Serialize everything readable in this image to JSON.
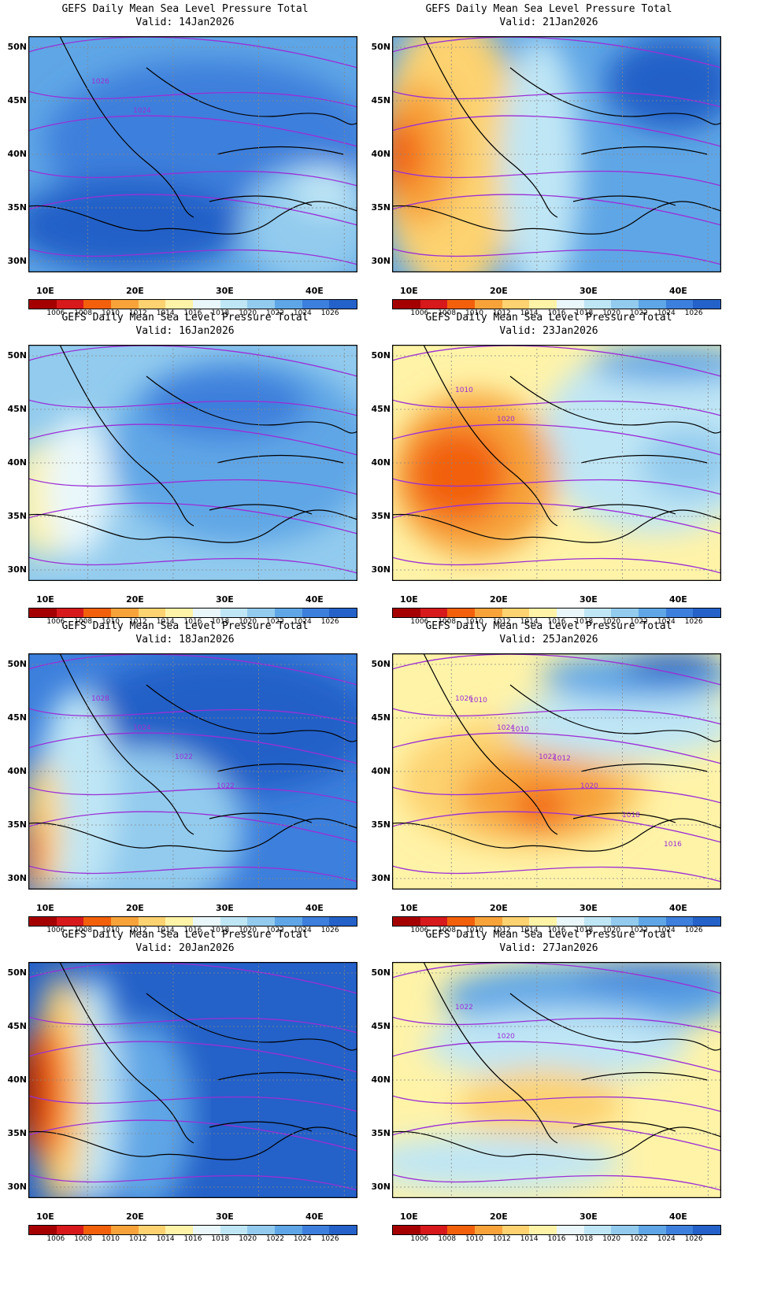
{
  "title_line1": "GEFS Daily Mean Sea Level Pressure Total",
  "lat_labels": [
    "50N",
    "45N",
    "40N",
    "35N",
    "30N"
  ],
  "lon_labels": [
    "10E",
    "20E",
    "30E",
    "40E"
  ],
  "colorbar": {
    "labels": [
      "1006",
      "1008",
      "1010",
      "1012",
      "1014",
      "1016",
      "1018",
      "1020",
      "1022",
      "1024",
      "1026"
    ],
    "colors": [
      "#a50000",
      "#d7191c",
      "#f2600b",
      "#f7a33a",
      "#fdd270",
      "#fff3a8",
      "#e9f7fb",
      "#bfe6f5",
      "#92cbee",
      "#5fa6e6",
      "#3c7fdc",
      "#2461c8"
    ]
  },
  "panels": [
    {
      "id": "p1",
      "valid": "Valid: 14Jan2026",
      "contour_labels": [
        "1026",
        "1024"
      ],
      "bg": "#5fa6e6",
      "blobs": [
        [
          "#3c7fdc",
          0.55,
          0.45,
          0.5,
          0.35
        ],
        [
          "#2461c8",
          0.3,
          0.8,
          0.35,
          0.2
        ],
        [
          "#92cbee",
          0.85,
          0.8,
          0.2,
          0.25
        ],
        [
          "#bfe6f5",
          0.9,
          0.65,
          0.1,
          0.1
        ]
      ]
    },
    {
      "id": "p2",
      "valid": "Valid: 21Jan2026",
      "contour_labels": [],
      "bg": "#5fa6e6",
      "blobs": [
        [
          "#fdd270",
          0.18,
          0.5,
          0.22,
          0.6
        ],
        [
          "#f7a33a",
          0.08,
          0.5,
          0.12,
          0.3
        ],
        [
          "#f2600b",
          0.03,
          0.5,
          0.06,
          0.15
        ],
        [
          "#bfe6f5",
          0.45,
          0.55,
          0.12,
          0.55
        ],
        [
          "#2461c8",
          0.85,
          0.2,
          0.2,
          0.2
        ]
      ]
    },
    {
      "id": "p3",
      "valid": "Valid: 16Jan2026",
      "contour_labels": [],
      "bg": "#92cbee",
      "blobs": [
        [
          "#5fa6e6",
          0.65,
          0.45,
          0.4,
          0.4
        ],
        [
          "#3c7fdc",
          0.6,
          0.25,
          0.25,
          0.15
        ],
        [
          "#fff3a8",
          0.05,
          0.65,
          0.1,
          0.25
        ],
        [
          "#e9f7fb",
          0.15,
          0.6,
          0.1,
          0.3
        ]
      ]
    },
    {
      "id": "p4",
      "valid": "Valid: 23Jan2026",
      "contour_labels": [
        "1010",
        "1020"
      ],
      "bg": "#fff3a8",
      "blobs": [
        [
          "#bfe6f5",
          0.8,
          0.4,
          0.35,
          0.4
        ],
        [
          "#92cbee",
          0.9,
          0.5,
          0.15,
          0.15
        ],
        [
          "#f7a33a",
          0.25,
          0.55,
          0.25,
          0.35
        ],
        [
          "#f2600b",
          0.2,
          0.55,
          0.15,
          0.2
        ],
        [
          "#5fa6e6",
          0.85,
          0.08,
          0.25,
          0.08
        ]
      ]
    },
    {
      "id": "p5",
      "valid": "Valid: 18Jan2026",
      "contour_labels": [
        "1028",
        "1024",
        "1022",
        "1022"
      ],
      "bg": "#3c7fdc",
      "blobs": [
        [
          "#2461c8",
          0.6,
          0.3,
          0.45,
          0.3
        ],
        [
          "#92cbee",
          0.35,
          0.75,
          0.3,
          0.35
        ],
        [
          "#bfe6f5",
          0.15,
          0.6,
          0.12,
          0.45
        ],
        [
          "#fdd270",
          0.04,
          0.75,
          0.06,
          0.3
        ],
        [
          "#f2600b",
          0.01,
          0.85,
          0.03,
          0.15
        ]
      ]
    },
    {
      "id": "p6",
      "valid": "Valid: 25Jan2026",
      "contour_labels": [
        "1026",
        "1024",
        "1022",
        "1020",
        "1018",
        "1016",
        "1010",
        "1010",
        "1012"
      ],
      "bg": "#fff3a8",
      "blobs": [
        [
          "#fdd270",
          0.4,
          0.55,
          0.38,
          0.28
        ],
        [
          "#f7a33a",
          0.45,
          0.6,
          0.25,
          0.18
        ],
        [
          "#f2600b",
          0.45,
          0.65,
          0.08,
          0.08
        ],
        [
          "#bfe6f5",
          0.7,
          0.3,
          0.35,
          0.15
        ],
        [
          "#5fa6e6",
          0.75,
          0.1,
          0.3,
          0.1
        ],
        [
          "#2461c8",
          0.85,
          0.05,
          0.15,
          0.06
        ]
      ]
    },
    {
      "id": "p7",
      "valid": "Valid: 20Jan2026",
      "contour_labels": [],
      "bg": "#2461c8",
      "blobs": [
        [
          "#5fa6e6",
          0.35,
          0.65,
          0.15,
          0.4
        ],
        [
          "#bfe6f5",
          0.2,
          0.55,
          0.08,
          0.5
        ],
        [
          "#fdd270",
          0.1,
          0.55,
          0.08,
          0.5
        ],
        [
          "#f2600b",
          0.05,
          0.55,
          0.07,
          0.3
        ],
        [
          "#a50000",
          0.0,
          0.55,
          0.04,
          0.2
        ]
      ]
    },
    {
      "id": "p8",
      "valid": "Valid: 27Jan2026",
      "contour_labels": [
        "1022",
        "1020"
      ],
      "bg": "#fff3a8",
      "blobs": [
        [
          "#5fa6e6",
          0.6,
          0.15,
          0.45,
          0.15
        ],
        [
          "#3c7fdc",
          0.8,
          0.05,
          0.25,
          0.06
        ],
        [
          "#bfe6f5",
          0.5,
          0.35,
          0.4,
          0.15
        ],
        [
          "#fdd270",
          0.45,
          0.6,
          0.25,
          0.15
        ],
        [
          "#bfe6f5",
          0.3,
          0.85,
          0.4,
          0.12
        ]
      ]
    }
  ]
}
